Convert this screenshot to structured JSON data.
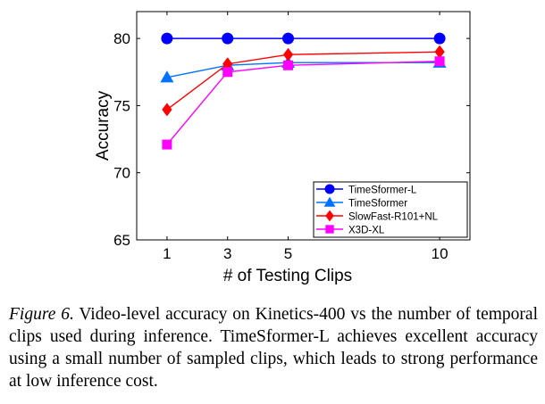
{
  "chart_data": {
    "type": "line",
    "xlabel": "# of Testing Clips",
    "ylabel": "Accuracy",
    "x": [
      1,
      3,
      5,
      10
    ],
    "x_tick_labels": [
      "1",
      "3",
      "5",
      "10"
    ],
    "ylim": [
      65,
      82
    ],
    "y_ticks": [
      65,
      70,
      75,
      80
    ],
    "y_tick_labels": [
      "65",
      "70",
      "75",
      "80"
    ],
    "grid": false,
    "legend_position": "bottom-right",
    "series": [
      {
        "name": "TimeSformer-L",
        "color": "#0000ff",
        "marker": "circle",
        "values": [
          80.0,
          80.0,
          80.0,
          80.0
        ]
      },
      {
        "name": "TimeSformer",
        "color": "#0072ff",
        "marker": "triangle",
        "values": [
          77.1,
          78.0,
          78.2,
          78.2
        ]
      },
      {
        "name": "SlowFast-R101+NL",
        "color": "#ff0000",
        "marker": "diamond",
        "values": [
          74.7,
          78.1,
          78.8,
          79.0
        ]
      },
      {
        "name": "X3D-XL",
        "color": "#ff00ff",
        "marker": "square",
        "values": [
          72.1,
          77.5,
          78.0,
          78.3
        ]
      }
    ]
  },
  "caption": {
    "label": "Figure 6.",
    "text": " Video-level accuracy on Kinetics-400 vs the number of temporal clips used during inference. TimeSformer-L achieves excellent accuracy using a small number of sampled clips, which leads to strong performance at low inference cost."
  }
}
